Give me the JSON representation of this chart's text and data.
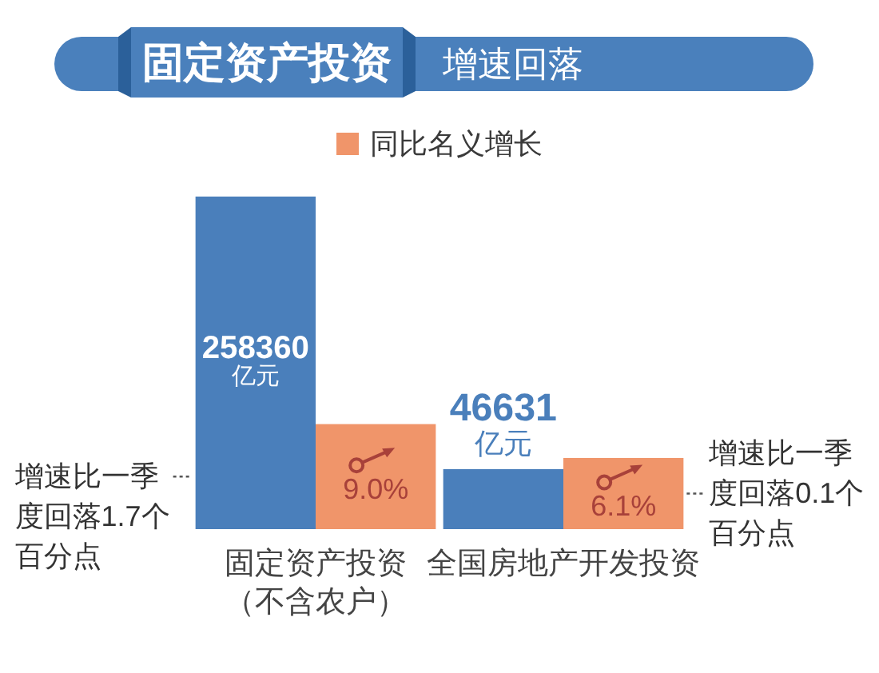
{
  "chart_data": {
    "type": "bar",
    "title": "固定资产投资",
    "subtitle": "增速回落",
    "legend": "top",
    "categories": [
      "固定资产投资（不含农户）",
      "全国房地产开发投资"
    ],
    "series": [
      {
        "color": "#4a7fbb",
        "values": [
          258360,
          46631
        ],
        "value_labels": [
          "258360\n亿元",
          "46631\n亿元"
        ]
      },
      {
        "name": "同比名义增长",
        "color": "#f0956a",
        "axis": "y2",
        "values": [
          9.0,
          6.1
        ],
        "value_labels": [
          "9.0%",
          "6.1%"
        ]
      }
    ],
    "annotations": [
      "增速比一季度回落1.7个百分点",
      "增速比一季度回落0.1个百分点"
    ]
  }
}
